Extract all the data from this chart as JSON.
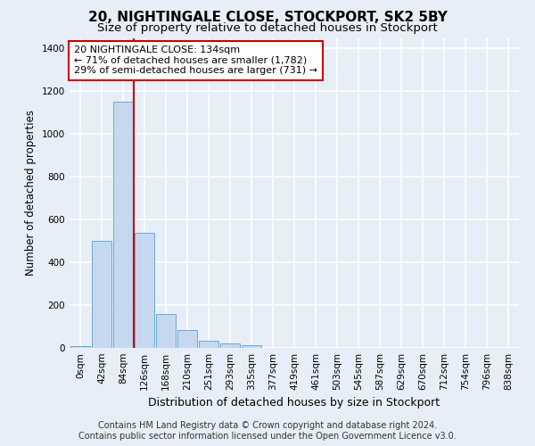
{
  "title": "20, NIGHTINGALE CLOSE, STOCKPORT, SK2 5BY",
  "subtitle": "Size of property relative to detached houses in Stockport",
  "xlabel": "Distribution of detached houses by size in Stockport",
  "ylabel": "Number of detached properties",
  "bar_labels": [
    "0sqm",
    "42sqm",
    "84sqm",
    "126sqm",
    "168sqm",
    "210sqm",
    "251sqm",
    "293sqm",
    "335sqm",
    "377sqm",
    "419sqm",
    "461sqm",
    "503sqm",
    "545sqm",
    "587sqm",
    "629sqm",
    "670sqm",
    "712sqm",
    "754sqm",
    "796sqm",
    "838sqm"
  ],
  "bar_values": [
    10,
    500,
    1150,
    540,
    160,
    82,
    32,
    22,
    12,
    0,
    0,
    0,
    0,
    0,
    0,
    0,
    0,
    0,
    0,
    0,
    0
  ],
  "bar_color": "#c5d8f0",
  "bar_edge_color": "#6aaad4",
  "bg_color": "#e8eef7",
  "grid_color": "#ffffff",
  "vline_color": "#cc0000",
  "vline_x_idx": 3,
  "annotation_text": "20 NIGHTINGALE CLOSE: 134sqm\n← 71% of detached houses are smaller (1,782)\n29% of semi-detached houses are larger (731) →",
  "annotation_box_facecolor": "#ffffff",
  "annotation_box_edgecolor": "#cc0000",
  "ylim": [
    0,
    1450
  ],
  "yticks": [
    0,
    200,
    400,
    600,
    800,
    1000,
    1200,
    1400
  ],
  "footer_line1": "Contains HM Land Registry data © Crown copyright and database right 2024.",
  "footer_line2": "Contains public sector information licensed under the Open Government Licence v3.0.",
  "title_fontsize": 11,
  "subtitle_fontsize": 9.5,
  "xlabel_fontsize": 9,
  "ylabel_fontsize": 8.5,
  "tick_fontsize": 7.5,
  "annotation_fontsize": 8,
  "footer_fontsize": 7
}
